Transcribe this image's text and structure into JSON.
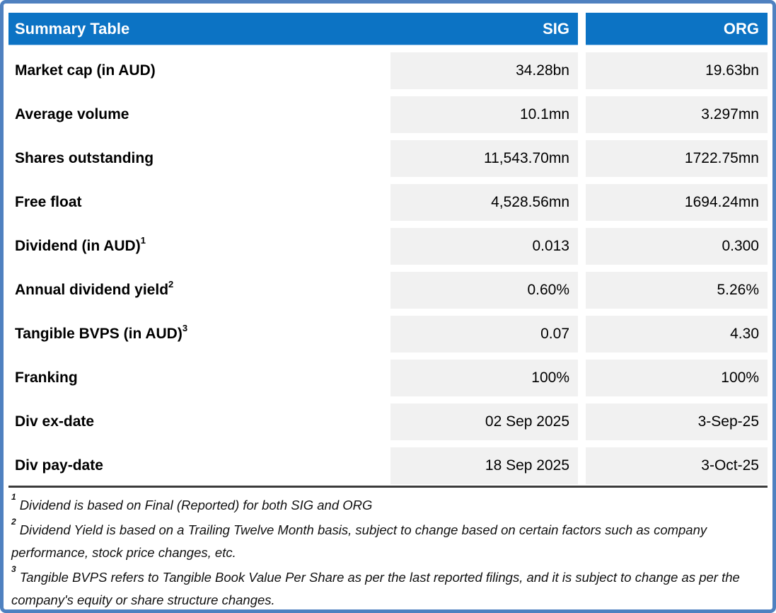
{
  "chart_data": {
    "type": "table",
    "title": "Summary Table",
    "columns": [
      "SIG",
      "ORG"
    ],
    "rows": [
      {
        "label": "Market cap (in AUD)",
        "sup": "",
        "values": [
          "34.28bn",
          "19.63bn"
        ]
      },
      {
        "label": "Average volume",
        "sup": "",
        "values": [
          "10.1mn",
          "3.297mn"
        ]
      },
      {
        "label": "Shares outstanding",
        "sup": "",
        "values": [
          "11,543.70mn",
          "1722.75mn"
        ]
      },
      {
        "label": "Free float",
        "sup": "",
        "values": [
          "4,528.56mn",
          "1694.24mn"
        ]
      },
      {
        "label": "Dividend (in AUD)",
        "sup": "1",
        "values": [
          "0.013",
          "0.300"
        ]
      },
      {
        "label": "Annual dividend yield",
        "sup": "2",
        "values": [
          "0.60%",
          "5.26%"
        ]
      },
      {
        "label": "Tangible BVPS (in AUD)",
        "sup": "3",
        "values": [
          "0.07",
          "4.30"
        ]
      },
      {
        "label": "Franking",
        "sup": "",
        "values": [
          "100%",
          "100%"
        ]
      },
      {
        "label": "Div ex-date",
        "sup": "",
        "values": [
          "02 Sep 2025",
          "3-Sep-25"
        ]
      },
      {
        "label": "Div pay-date",
        "sup": "",
        "values": [
          "18 Sep 2025",
          "3-Oct-25"
        ]
      }
    ]
  },
  "footnotes": [
    {
      "sup": "1",
      "text": "Dividend is based on Final (Reported) for both SIG and ORG"
    },
    {
      "sup": "2",
      "text": "Dividend Yield is based on a Trailing Twelve Month basis, subject to change based on certain factors such as company performance, stock price changes, etc."
    },
    {
      "sup": "3",
      "text": "Tangible BVPS refers to Tangible Book Value Per Share as per the last reported filings, and it is subject to change as per the company's equity or share structure changes."
    }
  ],
  "colors": {
    "header_blue": "#0c73c4",
    "border_blue": "#4f81c0",
    "cell_gray": "#f1f1f1",
    "divider_dark": "#3b3b3b",
    "header_text": "#ffffff",
    "body_text": "#000000"
  }
}
